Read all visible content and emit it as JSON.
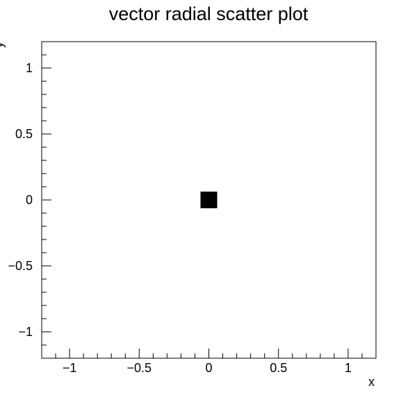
{
  "chart_data": {
    "type": "scatter",
    "title": "vector radial scatter plot",
    "xlabel": "x",
    "ylabel": "y",
    "xlim": [
      -1.2,
      1.2
    ],
    "ylim": [
      -1.2,
      1.2
    ],
    "grid": false,
    "x_ticks": [
      -1,
      -0.5,
      0,
      0.5,
      1
    ],
    "y_ticks": [
      -1,
      -0.5,
      0,
      0.5,
      1
    ],
    "x_tick_labels": [
      "−1",
      "−0.5",
      "0",
      "0.5",
      "1"
    ],
    "y_tick_labels": [
      "−1",
      "−0.5",
      "0",
      "0.5",
      "1"
    ],
    "series": [
      {
        "points": [
          {
            "x": 0,
            "y": 0
          }
        ],
        "color": "#000000",
        "marker": "square"
      }
    ]
  }
}
